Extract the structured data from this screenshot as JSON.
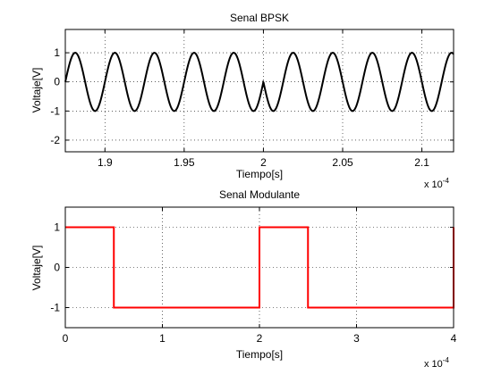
{
  "chart_data": [
    {
      "type": "line",
      "title": "Senal BPSK",
      "xlabel": "Tiempo[s]",
      "ylabel": "Voltaje[V]",
      "x_multiplier": "x 10",
      "x_multiplier_exp": "-4",
      "xlim": [
        1.875,
        2.12
      ],
      "ylim": [
        -2.4,
        1.8
      ],
      "x_ticks": [
        1.9,
        1.95,
        2.0,
        2.05,
        2.1
      ],
      "x_tick_labels": [
        "1.9",
        "1.95",
        "2",
        "2.05",
        "2.1"
      ],
      "y_ticks": [
        -2,
        -1,
        0,
        1
      ],
      "y_tick_labels": [
        "-2",
        "-1",
        "0",
        "1"
      ],
      "grid": true,
      "line_color": "#000000",
      "signal": {
        "amplitude": 1,
        "frequency_per_unit": 40,
        "phase_flip_at": 2.0
      }
    },
    {
      "type": "line",
      "title": "Senal Modulante",
      "xlabel": "Tiempo[s]",
      "ylabel": "Voltaje[V]",
      "x_multiplier": "x 10",
      "x_multiplier_exp": "-4",
      "xlim": [
        0,
        4
      ],
      "ylim": [
        -1.5,
        1.5
      ],
      "x_ticks": [
        0,
        1,
        2,
        3,
        4
      ],
      "x_tick_labels": [
        "0",
        "1",
        "2",
        "3",
        "4"
      ],
      "y_ticks": [
        -1,
        0,
        1
      ],
      "y_tick_labels": [
        "-1",
        "0",
        "1"
      ],
      "grid": true,
      "line_color": "#ff0000",
      "series": [
        {
          "x": [
            0,
            0.5,
            0.5,
            2.0,
            2.0,
            2.5,
            2.5,
            4.0,
            4.0
          ],
          "y": [
            1,
            1,
            -1,
            -1,
            1,
            1,
            -1,
            -1,
            1
          ]
        }
      ]
    }
  ]
}
